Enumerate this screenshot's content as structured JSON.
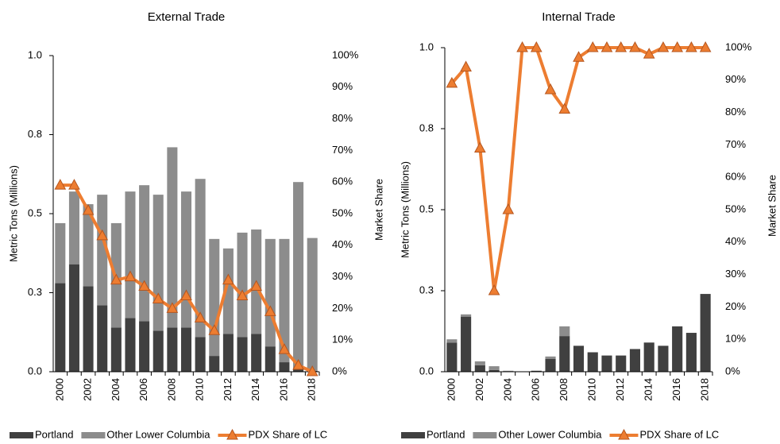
{
  "chart_data": [
    {
      "type": "stacked_bar",
      "title": "External Trade",
      "y_label": "Metric Tons (Millions)",
      "y2_label": "Market Share",
      "categories": [
        "2000",
        null,
        "2002",
        null,
        "2004",
        null,
        "2006",
        null,
        "2008",
        null,
        "2010",
        null,
        "2012",
        null,
        "2014",
        null,
        "2016",
        null,
        "2018"
      ],
      "series": [
        {
          "name": "Portland",
          "color": "#404040",
          "values": [
            0.28,
            0.34,
            0.27,
            0.21,
            0.14,
            0.17,
            0.16,
            0.13,
            0.14,
            0.14,
            0.11,
            0.05,
            0.12,
            0.11,
            0.12,
            0.08,
            0.03,
            0.01,
            0.003
          ]
        },
        {
          "name": "Other Lower Columbia",
          "color": "#8c8c8c",
          "values": [
            0.19,
            0.23,
            0.26,
            0.35,
            0.33,
            0.4,
            0.43,
            0.43,
            0.57,
            0.43,
            0.5,
            0.37,
            0.27,
            0.33,
            0.33,
            0.34,
            0.39,
            0.59,
            0.42
          ]
        },
        {
          "name": "PDX Share of LC",
          "type": "line",
          "axis": "y2",
          "color": "#ed7d31",
          "values": [
            59,
            59,
            51,
            43,
            29,
            30,
            27,
            23,
            20,
            24,
            17,
            13,
            29,
            24,
            27,
            19,
            7,
            2,
            0
          ]
        }
      ],
      "ylim": [
        0,
        1
      ],
      "yticks": [
        {
          "value": 0,
          "label": "0.0"
        },
        {
          "value": 0.25,
          "label": "0.3"
        },
        {
          "value": 0.5,
          "label": "0.5"
        },
        {
          "value": 0.75,
          "label": "0.8"
        },
        {
          "value": 1,
          "label": "1.0"
        }
      ],
      "y2lim": [
        0,
        100
      ],
      "y2ticks": [
        {
          "value": 0,
          "label": "0%"
        },
        {
          "value": 10,
          "label": "10%"
        },
        {
          "value": 20,
          "label": "20%"
        },
        {
          "value": 30,
          "label": "30%"
        },
        {
          "value": 40,
          "label": "40%"
        },
        {
          "value": 50,
          "label": "50%"
        },
        {
          "value": 60,
          "label": "60%"
        },
        {
          "value": 70,
          "label": "70%"
        },
        {
          "value": 80,
          "label": "80%"
        },
        {
          "value": 90,
          "label": "90%"
        },
        {
          "value": 100,
          "label": "100%"
        }
      ]
    },
    {
      "type": "stacked_bar",
      "title": "Internal Trade",
      "y_label": "Metric Tons (Millions)",
      "y2_label": "Market Share",
      "categories": [
        "2000",
        null,
        "2002",
        null,
        "2004",
        null,
        "2006",
        null,
        "2008",
        null,
        "2010",
        null,
        "2012",
        null,
        "2014",
        null,
        "2016",
        null,
        "2018"
      ],
      "series": [
        {
          "name": "Portland",
          "color": "#404040",
          "values": [
            0.09,
            0.17,
            0.02,
            0.005,
            0.002,
            0.001,
            0.003,
            0.04,
            0.11,
            0.08,
            0.06,
            0.05,
            0.05,
            0.07,
            0.09,
            0.08,
            0.14,
            0.12,
            0.24
          ]
        },
        {
          "name": "Other Lower Columbia",
          "color": "#8c8c8c",
          "values": [
            0.01,
            0.007,
            0.012,
            0.012,
            0.001,
            0,
            0,
            0.007,
            0.03,
            0,
            0,
            0,
            0,
            0,
            0,
            0,
            0,
            0,
            0
          ]
        },
        {
          "name": "PDX Share of LC",
          "type": "line",
          "axis": "y2",
          "color": "#ed7d31",
          "values": [
            89,
            94,
            69,
            25,
            50,
            100,
            100,
            87,
            81,
            97,
            100,
            100,
            100,
            100,
            98,
            100,
            100,
            100,
            100
          ]
        }
      ],
      "ylim": [
        0,
        1
      ],
      "yticks": [
        {
          "value": 0,
          "label": "0.0"
        },
        {
          "value": 0.25,
          "label": "0.3"
        },
        {
          "value": 0.5,
          "label": "0.5"
        },
        {
          "value": 0.75,
          "label": "0.8"
        },
        {
          "value": 1,
          "label": "1.0"
        }
      ],
      "y2lim": [
        0,
        100
      ],
      "y2ticks": [
        {
          "value": 0,
          "label": "0%"
        },
        {
          "value": 10,
          "label": "10%"
        },
        {
          "value": 20,
          "label": "20%"
        },
        {
          "value": 30,
          "label": "30%"
        },
        {
          "value": 40,
          "label": "40%"
        },
        {
          "value": 50,
          "label": "50%"
        },
        {
          "value": 60,
          "label": "60%"
        },
        {
          "value": 70,
          "label": "70%"
        },
        {
          "value": 80,
          "label": "80%"
        },
        {
          "value": 90,
          "label": "90%"
        },
        {
          "value": 100,
          "label": "100%"
        }
      ]
    }
  ]
}
